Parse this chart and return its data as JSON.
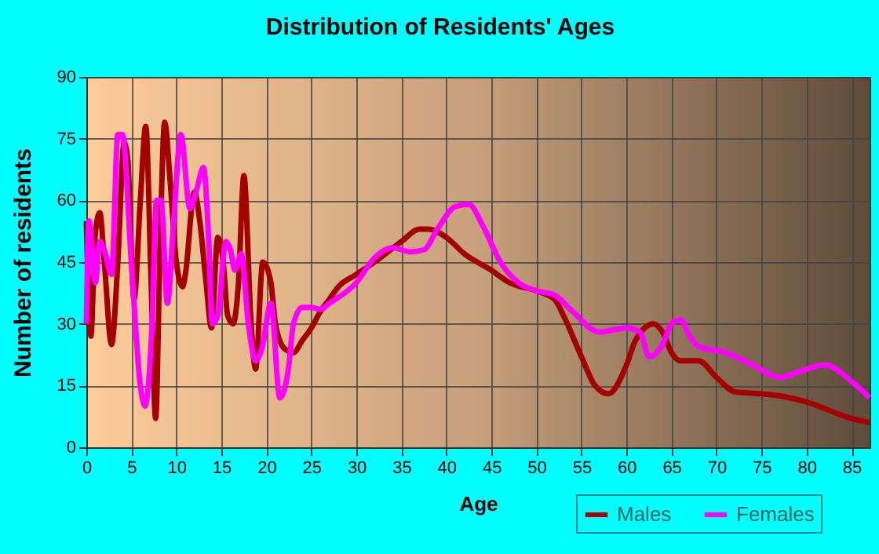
{
  "chart_data": {
    "type": "line",
    "title": "Distribution of Residents' Ages",
    "xlabel": "Age",
    "ylabel": "Number of residents",
    "xlim": [
      0,
      87
    ],
    "xticks": [
      0,
      5,
      10,
      15,
      20,
      25,
      30,
      35,
      40,
      45,
      50,
      55,
      60,
      65,
      70,
      75,
      80,
      85
    ],
    "ylim": [
      0,
      90
    ],
    "yticks": [
      0,
      15,
      30,
      45,
      60,
      75,
      90
    ],
    "grid": true,
    "legend": "bottom right",
    "marker": "none",
    "line_style": "solid",
    "series": [
      {
        "name": "Males",
        "color": "#a40000",
        "x": [
          0,
          0.5,
          1,
          1.5,
          2,
          2.8,
          3.5,
          4.2,
          4.6,
          5.3,
          6,
          6.6,
          7.2,
          7.7,
          8.2,
          8.7,
          9.3,
          10,
          10.7,
          11,
          12,
          12.6,
          13.3,
          13.9,
          14.6,
          15.2,
          15.7,
          16.3,
          16.9,
          17.5,
          18.3,
          18.8,
          19.6,
          20.5,
          21,
          22,
          23,
          24,
          25,
          26,
          27,
          28,
          30,
          32,
          35,
          37,
          38,
          40,
          42,
          45,
          47,
          50,
          52,
          53,
          55,
          56.5,
          58,
          60,
          61,
          63,
          64,
          65,
          66,
          68,
          70,
          72,
          75,
          77,
          80,
          85,
          87
        ],
        "values": [
          55,
          27,
          52,
          57,
          45,
          25,
          45,
          74,
          70,
          36,
          60,
          78,
          40,
          7,
          50,
          79,
          65,
          45,
          39,
          42,
          62,
          55,
          40,
          29,
          51,
          45,
          32,
          30,
          40,
          66,
          30,
          19,
          45,
          40,
          30,
          24,
          23,
          26,
          29,
          33,
          36,
          39,
          42,
          45,
          50,
          53,
          53,
          51,
          47,
          43,
          40,
          38,
          36,
          32,
          22,
          15,
          13,
          20,
          26,
          30,
          28,
          23,
          21,
          21,
          17,
          13.5,
          13,
          12.5,
          11,
          7,
          6
        ]
      },
      {
        "name": "Females",
        "color": "#ff00ff",
        "x": [
          0,
          0.3,
          1,
          1.5,
          2,
          2.8,
          3.5,
          4,
          5,
          6,
          6.5,
          7.3,
          7.8,
          8.3,
          9,
          9.7,
          10.5,
          11.5,
          12.3,
          13,
          13.6,
          14,
          14.6,
          15.5,
          16,
          16.5,
          17.2,
          18,
          18.8,
          19.5,
          20.5,
          21.5,
          22.5,
          23,
          24,
          25,
          26,
          27,
          30,
          32,
          34,
          36,
          37.5,
          39,
          41,
          42.5,
          44,
          46,
          48,
          50,
          52,
          54,
          57,
          60,
          61.5,
          62.5,
          64,
          65,
          66,
          67,
          68,
          71,
          74,
          77,
          80,
          82,
          85,
          87
        ],
        "values": [
          30,
          55,
          40,
          50,
          48,
          42,
          76,
          76,
          45,
          15,
          10,
          30,
          60,
          60,
          35,
          55,
          76,
          58,
          63,
          68,
          50,
          30,
          32,
          50,
          48,
          43,
          47,
          30,
          21,
          24,
          35,
          12,
          20,
          30,
          34,
          34,
          33.5,
          35,
          40,
          46,
          48.5,
          47.5,
          48,
          53,
          58.5,
          59,
          54,
          45,
          40,
          38,
          37,
          33,
          28,
          29,
          28,
          22,
          25,
          30,
          31,
          27,
          24.5,
          23,
          20,
          17,
          19,
          20,
          16,
          12
        ]
      }
    ]
  }
}
